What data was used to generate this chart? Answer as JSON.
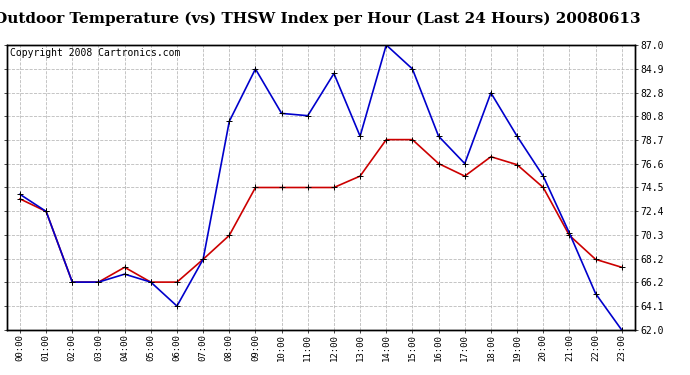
{
  "title": "Outdoor Temperature (vs) THSW Index per Hour (Last 24 Hours) 20080613",
  "copyright": "Copyright 2008 Cartronics.com",
  "hours": [
    "00:00",
    "01:00",
    "02:00",
    "03:00",
    "04:00",
    "05:00",
    "06:00",
    "07:00",
    "08:00",
    "09:00",
    "10:00",
    "11:00",
    "12:00",
    "13:00",
    "14:00",
    "15:00",
    "16:00",
    "17:00",
    "18:00",
    "19:00",
    "20:00",
    "21:00",
    "22:00",
    "23:00"
  ],
  "temp": [
    73.5,
    72.4,
    66.2,
    66.2,
    67.5,
    66.2,
    66.2,
    68.2,
    70.3,
    74.5,
    74.5,
    74.5,
    74.5,
    75.5,
    78.7,
    78.7,
    76.6,
    75.5,
    77.2,
    76.5,
    74.5,
    70.3,
    68.2,
    67.5
  ],
  "thsw": [
    73.9,
    72.4,
    66.2,
    66.2,
    66.9,
    66.2,
    64.1,
    68.2,
    80.3,
    84.9,
    81.0,
    80.8,
    84.5,
    79.0,
    87.0,
    84.9,
    79.0,
    76.6,
    82.8,
    79.0,
    75.5,
    70.5,
    65.2,
    62.0
  ],
  "temp_color": "#cc0000",
  "thsw_color": "#0000cc",
  "bg_color": "#ffffff",
  "grid_color": "#bbbbbb",
  "ylim_min": 62.0,
  "ylim_max": 87.0,
  "yticks": [
    62.0,
    64.1,
    66.2,
    68.2,
    70.3,
    72.4,
    74.5,
    76.6,
    78.7,
    80.8,
    82.8,
    84.9,
    87.0
  ],
  "title_fontsize": 11,
  "copyright_fontsize": 7,
  "marker": "+",
  "markersize": 5,
  "linewidth": 1.2
}
